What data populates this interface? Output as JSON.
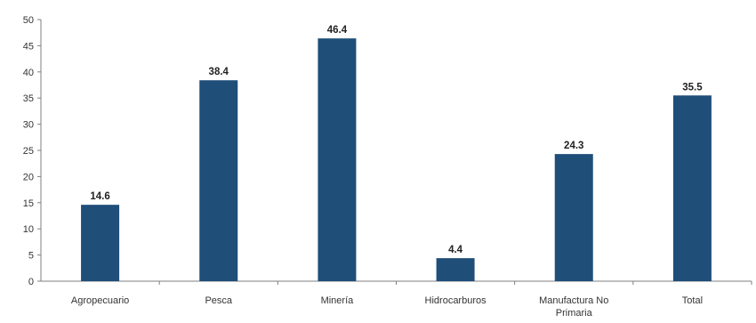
{
  "chart_data": {
    "type": "bar",
    "categories": [
      "Agropecuario",
      "Pesca",
      "Minería",
      "Hidrocarburos",
      "Manufactura No Primaria",
      "Total"
    ],
    "category_lines": [
      [
        "Agropecuario"
      ],
      [
        "Pesca"
      ],
      [
        "Minería"
      ],
      [
        "Hidrocarburos"
      ],
      [
        "Manufactura No",
        "Primaria"
      ],
      [
        "Total"
      ]
    ],
    "values": [
      14.6,
      38.4,
      46.4,
      4.4,
      24.3,
      35.5
    ],
    "data_labels": [
      "14.6",
      "38.4",
      "46.4",
      "4.4",
      "24.3",
      "35.5"
    ],
    "y_ticks": [
      "0",
      "5",
      "10",
      "15",
      "20",
      "25",
      "30",
      "35",
      "40",
      "45",
      "50"
    ],
    "ylim": [
      0,
      50
    ],
    "title": "",
    "xlabel": "",
    "ylabel": "",
    "grid": false,
    "bar_color": "#1f4e79"
  }
}
